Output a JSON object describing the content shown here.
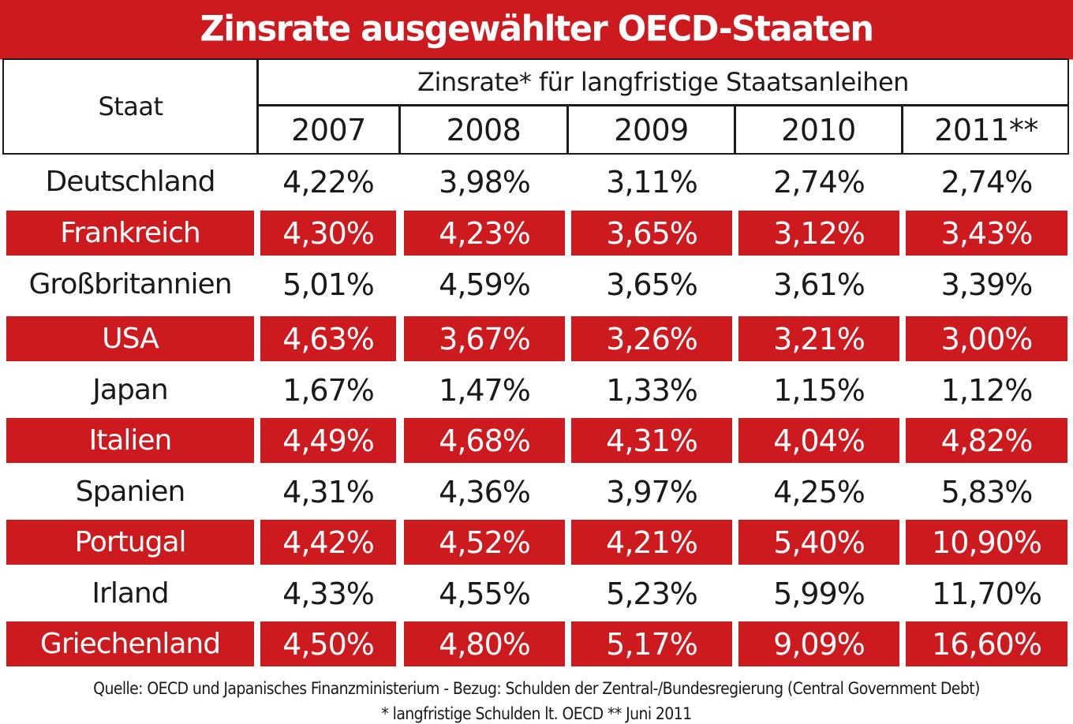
{
  "title": "Zinsrate ausgewählter OECD-Staaten",
  "header": {
    "staat": "Staat",
    "subtitle": "Zinsrate* für langfristige Staatsanleihen",
    "years": [
      "2007",
      "2008",
      "2009",
      "2010",
      "2011**"
    ]
  },
  "colors": {
    "accent_red": "#cc1a1f",
    "text": "#1a1a1a",
    "background": "#ffffff"
  },
  "chart_data": {
    "type": "table",
    "title": "Zinsrate ausgewählter OECD-Staaten",
    "columns": [
      "Staat",
      "2007",
      "2008",
      "2009",
      "2010",
      "2011**"
    ],
    "rows": [
      {
        "country": "Deutschland",
        "values": [
          "4,22%",
          "3,98%",
          "3,11%",
          "2,74%",
          "2,74%"
        ],
        "style": "white"
      },
      {
        "country": "Frankreich",
        "values": [
          "4,30%",
          "4,23%",
          "3,65%",
          "3,12%",
          "3,43%"
        ],
        "style": "red"
      },
      {
        "country": "Großbritannien",
        "values": [
          "5,01%",
          "4,59%",
          "3,65%",
          "3,61%",
          "3,39%"
        ],
        "style": "white"
      },
      {
        "country": "USA",
        "values": [
          "4,63%",
          "3,67%",
          "3,26%",
          "3,21%",
          "3,00%"
        ],
        "style": "red"
      },
      {
        "country": "Japan",
        "values": [
          "1,67%",
          "1,47%",
          "1,33%",
          "1,15%",
          "1,12%"
        ],
        "style": "white"
      },
      {
        "country": "Italien",
        "values": [
          "4,49%",
          "4,68%",
          "4,31%",
          "4,04%",
          "4,82%"
        ],
        "style": "red"
      },
      {
        "country": "Spanien",
        "values": [
          "4,31%",
          "4,36%",
          "3,97%",
          "4,25%",
          "5,83%"
        ],
        "style": "white"
      },
      {
        "country": "Portugal",
        "values": [
          "4,42%",
          "4,52%",
          "4,21%",
          "5,40%",
          "10,90%"
        ],
        "style": "red"
      },
      {
        "country": "Irland",
        "values": [
          "4,33%",
          "4,55%",
          "5,23%",
          "5,99%",
          "11,70%"
        ],
        "style": "white"
      },
      {
        "country": "Griechenland",
        "values": [
          "4,50%",
          "4,80%",
          "5,17%",
          "9,09%",
          "16,60%"
        ],
        "style": "red"
      }
    ]
  },
  "footnotes": {
    "source": "Quelle: OECD und Japanisches Finanzministerium -   Bezug: Schulden der Zentral-/Bundesregierung (Central Government Debt)",
    "note": "* langfristige Schulden lt. OECD ** Juni 2011"
  }
}
